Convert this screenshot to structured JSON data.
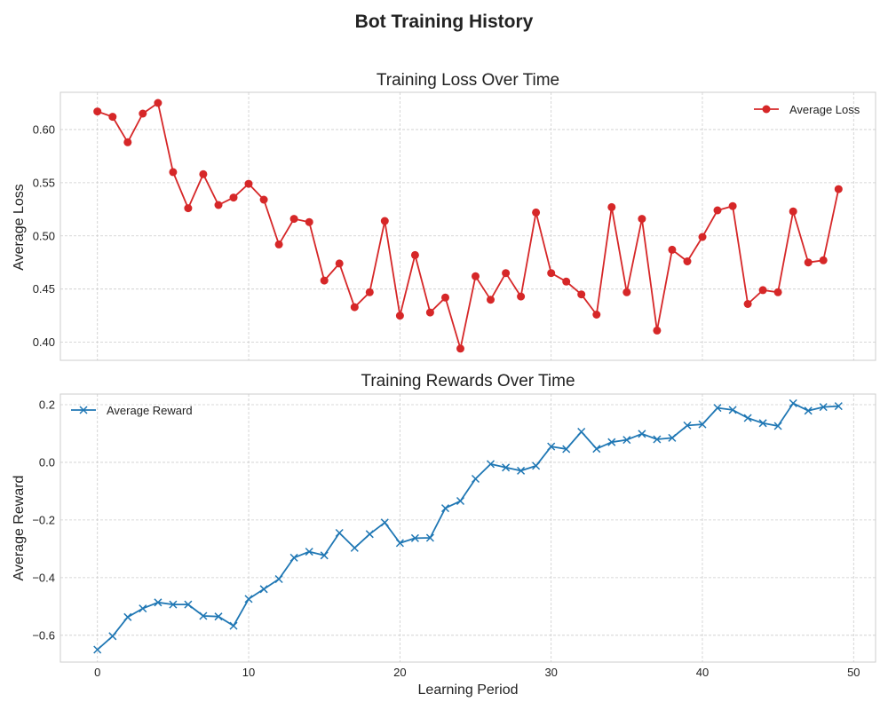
{
  "figure": {
    "title": "Bot Training History"
  },
  "chart_data": [
    {
      "type": "line",
      "title": "Training Loss Over Time",
      "xlabel": "",
      "ylabel": "Average Loss",
      "xlim": [
        -2.45,
        51.45
      ],
      "ylim": [
        0.383,
        0.635
      ],
      "xticks": [
        0,
        10,
        20,
        30,
        40,
        50
      ],
      "show_xtick_labels": false,
      "yticks": [
        0.4,
        0.45,
        0.5,
        0.55,
        0.6
      ],
      "ytick_labels": [
        "0.40",
        "0.45",
        "0.50",
        "0.55",
        "0.60"
      ],
      "grid": true,
      "legend": "top-right",
      "series": [
        {
          "name": "Average Loss",
          "color": "#d62728",
          "marker": "circle",
          "x": [
            0,
            1,
            2,
            3,
            4,
            5,
            6,
            7,
            8,
            9,
            10,
            11,
            12,
            13,
            14,
            15,
            16,
            17,
            18,
            19,
            20,
            21,
            22,
            23,
            24,
            25,
            26,
            27,
            28,
            29,
            30,
            31,
            32,
            33,
            34,
            35,
            36,
            37,
            38,
            39,
            40,
            41,
            42,
            43,
            44,
            45,
            46,
            47,
            48,
            49
          ],
          "values": [
            0.617,
            0.612,
            0.588,
            0.615,
            0.625,
            0.56,
            0.526,
            0.558,
            0.529,
            0.536,
            0.549,
            0.534,
            0.492,
            0.516,
            0.513,
            0.458,
            0.474,
            0.433,
            0.447,
            0.514,
            0.425,
            0.482,
            0.428,
            0.442,
            0.394,
            0.462,
            0.44,
            0.465,
            0.443,
            0.522,
            0.465,
            0.457,
            0.445,
            0.426,
            0.527,
            0.447,
            0.516,
            0.411,
            0.487,
            0.476,
            0.499,
            0.524,
            0.528,
            0.436,
            0.449,
            0.447,
            0.523,
            0.475,
            0.477,
            0.544
          ]
        }
      ]
    },
    {
      "type": "line",
      "title": "Training Rewards Over Time",
      "xlabel": "Learning Period",
      "ylabel": "Average Reward",
      "xlim": [
        -2.45,
        51.45
      ],
      "ylim": [
        -0.693,
        0.237
      ],
      "xticks": [
        0,
        10,
        20,
        30,
        40,
        50
      ],
      "show_xtick_labels": true,
      "xtick_labels": [
        "0",
        "10",
        "20",
        "30",
        "40",
        "50"
      ],
      "yticks": [
        -0.6,
        -0.4,
        -0.2,
        0.0,
        0.2
      ],
      "ytick_labels": [
        "−0.6",
        "−0.4",
        "−0.2",
        "0.0",
        "0.2"
      ],
      "grid": true,
      "legend": "top-left",
      "series": [
        {
          "name": "Average Reward",
          "color": "#1f77b4",
          "marker": "x",
          "x": [
            0,
            1,
            2,
            3,
            4,
            5,
            6,
            7,
            8,
            9,
            10,
            11,
            12,
            13,
            14,
            15,
            16,
            17,
            18,
            19,
            20,
            21,
            22,
            23,
            24,
            25,
            26,
            27,
            28,
            29,
            30,
            31,
            32,
            33,
            34,
            35,
            36,
            37,
            38,
            39,
            40,
            41,
            42,
            43,
            44,
            45,
            46,
            47,
            48,
            49
          ],
          "values": [
            -0.65,
            -0.603,
            -0.537,
            -0.507,
            -0.486,
            -0.493,
            -0.493,
            -0.533,
            -0.535,
            -0.567,
            -0.474,
            -0.44,
            -0.405,
            -0.331,
            -0.31,
            -0.323,
            -0.245,
            -0.297,
            -0.249,
            -0.209,
            -0.28,
            -0.263,
            -0.262,
            -0.159,
            -0.134,
            -0.057,
            -0.006,
            -0.018,
            -0.029,
            -0.012,
            0.055,
            0.046,
            0.106,
            0.047,
            0.07,
            0.078,
            0.099,
            0.08,
            0.085,
            0.128,
            0.132,
            0.189,
            0.182,
            0.154,
            0.136,
            0.126,
            0.205,
            0.179,
            0.192,
            0.195
          ]
        }
      ]
    }
  ]
}
